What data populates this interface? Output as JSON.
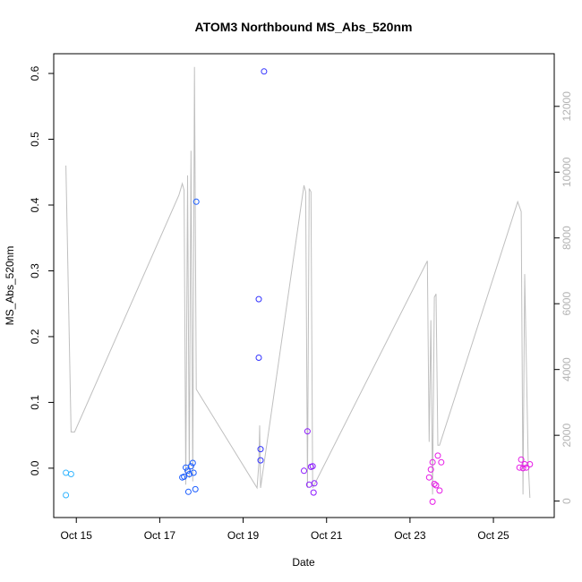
{
  "chart_data": {
    "type": "scatter",
    "title": "ATOM3 Northbound MS_Abs_520nm",
    "xlabel": "Date",
    "ylabel": "MS_Abs_520nm",
    "x_is_date": true,
    "xlim": [
      "2016-10-14T11:00",
      "2016-10-26T11:00"
    ],
    "ylim": [
      -0.075,
      0.63
    ],
    "x_ticks": [
      {
        "date": "2016-10-15T00:00",
        "label": "Oct 15"
      },
      {
        "date": "2016-10-17T00:00",
        "label": "Oct 17"
      },
      {
        "date": "2016-10-19T00:00",
        "label": "Oct 19"
      },
      {
        "date": "2016-10-21T00:00",
        "label": "Oct 21"
      },
      {
        "date": "2016-10-23T00:00",
        "label": "Oct 23"
      },
      {
        "date": "2016-10-25T00:00",
        "label": "Oct 25"
      }
    ],
    "y_ticks": [
      0.0,
      0.1,
      0.2,
      0.3,
      0.4,
      0.5,
      0.6
    ],
    "y_tick_labels": [
      "0.0",
      "0.1",
      "0.2",
      "0.3",
      "0.4",
      "0.5",
      "0.6"
    ],
    "y2_ticks": [
      0,
      2000,
      4000,
      6000,
      8000,
      10000,
      12000
    ],
    "y2_tick_labels": [
      "0",
      "2000",
      "4000",
      "6000",
      "8000",
      "10000",
      "12000"
    ],
    "y2lim": [
      -500,
      13600
    ],
    "grid": false,
    "legend": "none",
    "series": [
      {
        "color": "#33b5ff",
        "points": [
          {
            "x": "2016-10-14T18:00",
            "y": -0.007
          },
          {
            "x": "2016-10-14T21:00",
            "y": -0.009
          },
          {
            "x": "2016-10-14T18:00",
            "y": -0.041
          }
        ]
      },
      {
        "color": "#1a5cff",
        "points": [
          {
            "x": "2016-10-17T13:00",
            "y": -0.014
          },
          {
            "x": "2016-10-17T14:00",
            "y": -0.013
          },
          {
            "x": "2016-10-17T15:00",
            "y": 0.001
          },
          {
            "x": "2016-10-17T16:00",
            "y": -0.004
          },
          {
            "x": "2016-10-17T17:00",
            "y": -0.009
          },
          {
            "x": "2016-10-17T18:00",
            "y": 0.003
          },
          {
            "x": "2016-10-17T19:00",
            "y": 0.008
          },
          {
            "x": "2016-10-17T19:30",
            "y": -0.007
          },
          {
            "x": "2016-10-17T16:30",
            "y": -0.036
          },
          {
            "x": "2016-10-17T20:30",
            "y": -0.032
          },
          {
            "x": "2016-10-17T21:00",
            "y": 0.405
          }
        ]
      },
      {
        "color": "#3333ff",
        "points": [
          {
            "x": "2016-10-19T09:00",
            "y": 0.257
          },
          {
            "x": "2016-10-19T09:00",
            "y": 0.168
          },
          {
            "x": "2016-10-19T10:00",
            "y": 0.029
          },
          {
            "x": "2016-10-19T10:00",
            "y": 0.012
          },
          {
            "x": "2016-10-19T12:00",
            "y": 0.603
          }
        ]
      },
      {
        "color": "#8c1aff",
        "points": [
          {
            "x": "2016-10-20T11:00",
            "y": -0.004
          },
          {
            "x": "2016-10-20T13:00",
            "y": 0.056
          },
          {
            "x": "2016-10-20T14:00",
            "y": -0.025
          },
          {
            "x": "2016-10-20T15:00",
            "y": 0.002
          },
          {
            "x": "2016-10-20T16:00",
            "y": 0.003
          },
          {
            "x": "2016-10-20T17:00",
            "y": -0.023
          },
          {
            "x": "2016-10-20T16:30",
            "y": -0.037
          }
        ]
      },
      {
        "color": "#e619e6",
        "points": [
          {
            "x": "2016-10-23T11:00",
            "y": -0.014
          },
          {
            "x": "2016-10-23T12:00",
            "y": -0.002
          },
          {
            "x": "2016-10-23T13:00",
            "y": 0.009
          },
          {
            "x": "2016-10-23T13:00",
            "y": -0.051
          },
          {
            "x": "2016-10-23T14:00",
            "y": -0.024
          },
          {
            "x": "2016-10-23T15:00",
            "y": -0.026
          },
          {
            "x": "2016-10-23T16:00",
            "y": 0.019
          },
          {
            "x": "2016-10-23T17:00",
            "y": -0.034
          },
          {
            "x": "2016-10-23T18:00",
            "y": 0.009
          },
          {
            "x": "2016-10-25T15:00",
            "y": 0.001
          },
          {
            "x": "2016-10-25T16:00",
            "y": 0.013
          },
          {
            "x": "2016-10-25T17:00",
            "y": 0.0
          },
          {
            "x": "2016-10-25T18:00",
            "y": 0.006
          },
          {
            "x": "2016-10-25T19:00",
            "y": 0.001
          },
          {
            "x": "2016-10-25T21:00",
            "y": 0.006
          }
        ]
      }
    ],
    "secondary_line": {
      "color": "#bfbfbf",
      "points": [
        {
          "x": "2016-10-14T18:00",
          "y2": 10200
        },
        {
          "x": "2016-10-14T21:00",
          "y2": 2100
        },
        {
          "x": "2016-10-14T23:00",
          "y2": 2100
        },
        {
          "x": "2016-10-17T11:00",
          "y2": 9300
        },
        {
          "x": "2016-10-17T13:00",
          "y2": 9650
        },
        {
          "x": "2016-10-17T14:00",
          "y2": 9450
        },
        {
          "x": "2016-10-17T15:00",
          "y2": 500
        },
        {
          "x": "2016-10-17T16:00",
          "y2": 9900
        },
        {
          "x": "2016-10-17T17:00",
          "y2": 700
        },
        {
          "x": "2016-10-17T18:00",
          "y2": 10650
        },
        {
          "x": "2016-10-17T19:00",
          "y2": 600
        },
        {
          "x": "2016-10-17T20:00",
          "y2": 13200
        },
        {
          "x": "2016-10-17T21:00",
          "y2": 3400
        },
        {
          "x": "2016-10-19T08:00",
          "y2": 400
        },
        {
          "x": "2016-10-19T09:00",
          "y2": 1100
        },
        {
          "x": "2016-10-19T09:30",
          "y2": 2300
        },
        {
          "x": "2016-10-19T10:00",
          "y2": 400
        },
        {
          "x": "2016-10-20T11:00",
          "y2": 9600
        },
        {
          "x": "2016-10-20T12:00",
          "y2": 9400
        },
        {
          "x": "2016-10-20T13:00",
          "y2": 400
        },
        {
          "x": "2016-10-20T14:00",
          "y2": 9500
        },
        {
          "x": "2016-10-20T15:00",
          "y2": 9400
        },
        {
          "x": "2016-10-20T16:00",
          "y2": 400
        },
        {
          "x": "2016-10-23T10:00",
          "y2": 7300
        },
        {
          "x": "2016-10-23T11:00",
          "y2": 1800
        },
        {
          "x": "2016-10-23T12:00",
          "y2": 5500
        },
        {
          "x": "2016-10-23T13:00",
          "y2": 200
        },
        {
          "x": "2016-10-23T14:00",
          "y2": 6200
        },
        {
          "x": "2016-10-23T15:00",
          "y2": 6300
        },
        {
          "x": "2016-10-23T16:00",
          "y2": 1700
        },
        {
          "x": "2016-10-23T17:00",
          "y2": 1700
        },
        {
          "x": "2016-10-25T14:00",
          "y2": 9100
        },
        {
          "x": "2016-10-25T16:00",
          "y2": 8800
        },
        {
          "x": "2016-10-25T17:00",
          "y2": 200
        },
        {
          "x": "2016-10-25T18:00",
          "y2": 6900
        },
        {
          "x": "2016-10-25T20:00",
          "y2": 1200
        },
        {
          "x": "2016-10-25T21:00",
          "y2": 100
        }
      ]
    }
  }
}
